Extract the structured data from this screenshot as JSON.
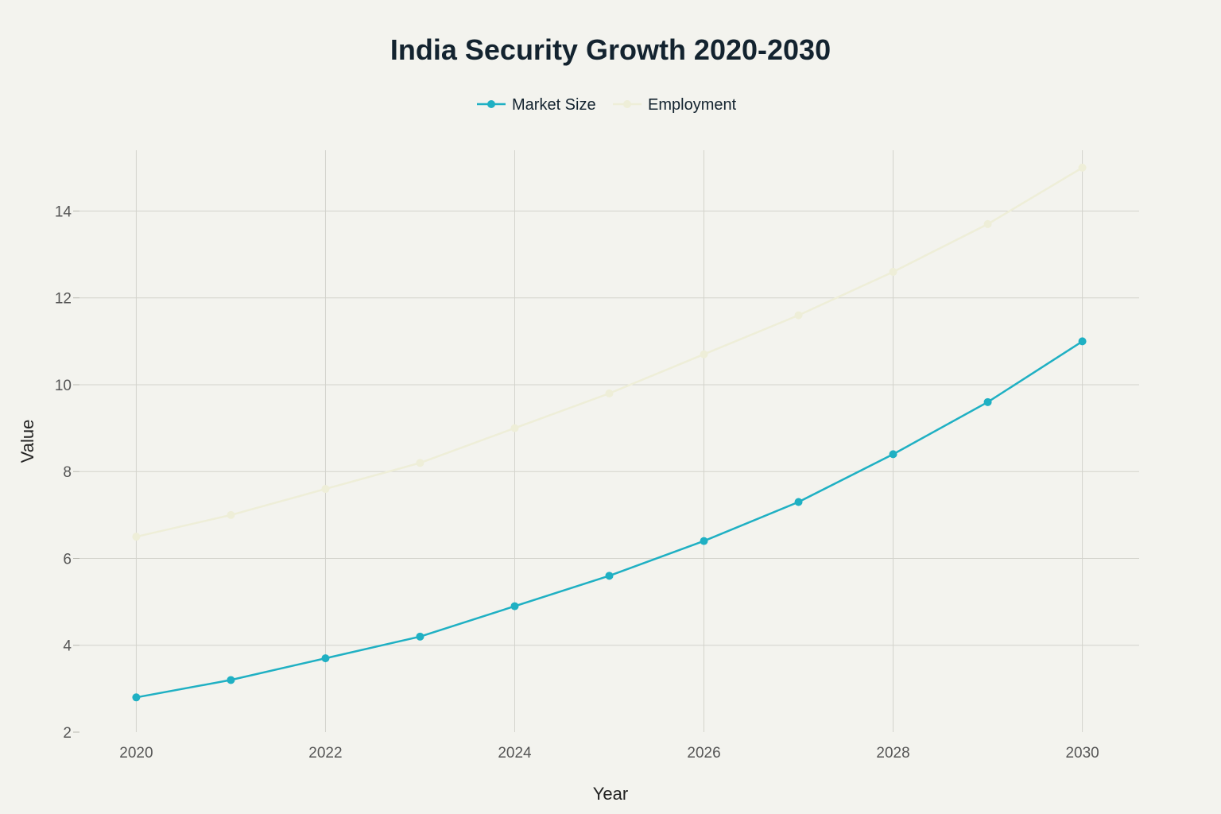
{
  "chart_data": {
    "type": "line",
    "title": "India Security Growth 2020-2030",
    "xlabel": "Year",
    "ylabel": "Value",
    "x": [
      2020,
      2021,
      2022,
      2023,
      2024,
      2025,
      2026,
      2027,
      2028,
      2029,
      2030
    ],
    "x_ticks": [
      "2020",
      "2022",
      "2024",
      "2026",
      "2028",
      "2030"
    ],
    "y_ticks": [
      "2",
      "4",
      "6",
      "8",
      "10",
      "12",
      "14"
    ],
    "xlim": [
      2019.4,
      2030.6
    ],
    "ylim": [
      2,
      15.4
    ],
    "grid": true,
    "legend_position": "top-center",
    "series": [
      {
        "name": "Market Size",
        "color": "#1fb0c3",
        "values": [
          2.8,
          3.2,
          3.7,
          4.2,
          4.9,
          5.6,
          6.4,
          7.3,
          8.4,
          9.6,
          11.0
        ]
      },
      {
        "name": "Employment",
        "color": "#eeeed8",
        "values": [
          6.5,
          7.0,
          7.6,
          8.2,
          9.0,
          9.8,
          10.7,
          11.6,
          12.6,
          13.7,
          15.0
        ]
      }
    ]
  }
}
